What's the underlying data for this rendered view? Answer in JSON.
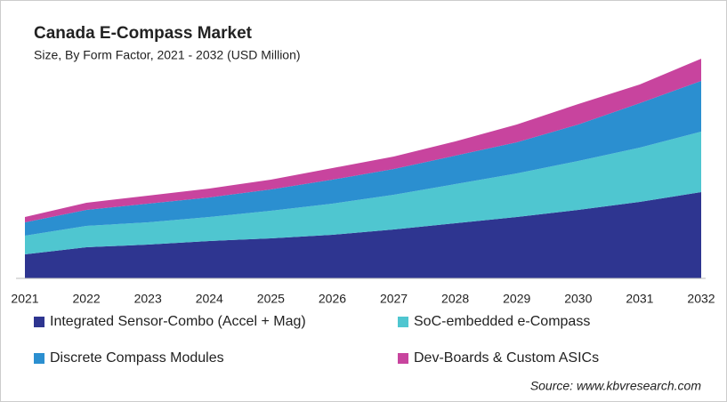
{
  "chart_data": {
    "type": "stacked-area",
    "title": "Canada E-Compass Market",
    "subtitle": "Size, By Form Factor, 2021 - 2032 (USD Million)",
    "source": "Source: www.kbvresearch.com",
    "categories": [
      "2021",
      "2022",
      "2023",
      "2024",
      "2025",
      "2026",
      "2027",
      "2028",
      "2029",
      "2030",
      "2031",
      "2032"
    ],
    "ylim": [
      0,
      250
    ],
    "series": [
      {
        "name": "Integrated Sensor-Combo (Accel + Mag)",
        "color": "#2e3590",
        "values": [
          27,
          35,
          38,
          42,
          45,
          49,
          55,
          62,
          69,
          77,
          86,
          97
        ]
      },
      {
        "name": "SoC-embedded e-Compass",
        "color": "#4fc6d0",
        "values": [
          21,
          24,
          25,
          27,
          31,
          35,
          39,
          44,
          49,
          55,
          61,
          68
        ]
      },
      {
        "name": "Discrete Compass Modules",
        "color": "#2b8fd0",
        "values": [
          15,
          18,
          21,
          22,
          24,
          27,
          29,
          32,
          35,
          41,
          50,
          57
        ]
      },
      {
        "name": "Dev-Boards & Custom ASICs",
        "color": "#c8449e",
        "values": [
          6,
          8,
          9,
          10,
          11,
          13,
          14,
          16,
          20,
          23,
          21,
          25
        ]
      }
    ]
  }
}
